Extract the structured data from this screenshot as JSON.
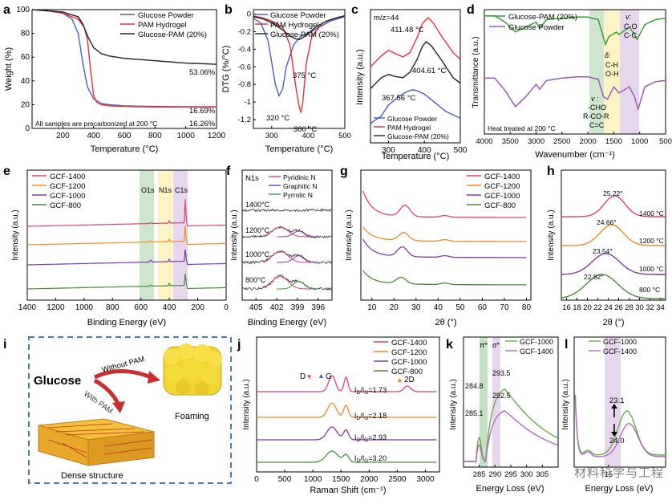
{
  "watermark": "材料科学与工程",
  "colors": {
    "blue": "#4a5fb8",
    "red": "#e8303a",
    "black": "#222222",
    "green": "#3a9d3a",
    "purple": "#9a5bb5",
    "pink": "#e0407c",
    "orange": "#f08a24",
    "violet": "#7a3ba8",
    "green2": "#4a8a3a"
  },
  "chart_data": [
    {
      "panel": "a",
      "type": "line",
      "xlabel": "Temperature (°C)",
      "ylabel": "Weight (%)",
      "xlim": [
        0,
        1200
      ],
      "ylim": [
        0,
        100
      ],
      "xticks": [
        200,
        400,
        600,
        800,
        1000,
        1200
      ],
      "yticks": [
        0,
        20,
        40,
        60,
        80,
        100
      ],
      "series": [
        {
          "name": "Glucose Powder",
          "x": [
            0,
            100,
            200,
            260,
            300,
            330,
            360,
            400,
            450,
            500,
            600,
            800,
            1000,
            1200
          ],
          "y": [
            100,
            99,
            97,
            92,
            80,
            55,
            35,
            25,
            21,
            20,
            19,
            18.5,
            18.3,
            18.2
          ]
        },
        {
          "name": "PAM Hydrogel",
          "x": [
            0,
            100,
            200,
            300,
            340,
            360,
            380,
            400,
            420,
            450,
            500,
            600,
            800,
            1000,
            1200
          ],
          "y": [
            100,
            99,
            97,
            92,
            85,
            75,
            50,
            28,
            22,
            20,
            19,
            18.5,
            18,
            18,
            18
          ]
        },
        {
          "name": "Glucose-PAM (20%)",
          "x": [
            0,
            100,
            200,
            300,
            330,
            360,
            400,
            450,
            500,
            600,
            800,
            1000,
            1200
          ],
          "y": [
            100,
            99,
            98,
            94,
            88,
            78,
            68,
            63,
            61,
            59,
            57,
            55,
            54
          ]
        }
      ],
      "annotations": [
        "53.06%",
        "16.69%",
        "16.26%",
        "All samples are precarbonized at 200 °C"
      ]
    },
    {
      "panel": "b",
      "type": "line",
      "xlabel": "Temperature (°C)",
      "ylabel": "DTG (%/°C)",
      "xlim": [
        250,
        500
      ],
      "ylim": [
        -1.3,
        0.05
      ],
      "xticks": [
        300,
        400,
        500
      ],
      "yticks": [
        0,
        -0.2,
        -0.4,
        -0.6,
        -0.8,
        -1.0,
        -1.2
      ],
      "series": [
        {
          "name": "Glucose Powder",
          "x": [
            250,
            270,
            290,
            300,
            310,
            320,
            330,
            340,
            360,
            380,
            400,
            430,
            460,
            500
          ],
          "y": [
            -0.05,
            -0.1,
            -0.3,
            -0.55,
            -0.8,
            -0.93,
            -0.85,
            -0.6,
            -0.35,
            -0.25,
            -0.22,
            -0.15,
            -0.08,
            -0.03
          ]
        },
        {
          "name": "PAM Hydrogel",
          "x": [
            250,
            280,
            300,
            330,
            350,
            365,
            375,
            380,
            385,
            395,
            410,
            440,
            470,
            500
          ],
          "y": [
            -0.02,
            -0.05,
            -0.08,
            -0.15,
            -0.35,
            -0.8,
            -1.05,
            -1.12,
            -1.0,
            -0.55,
            -0.25,
            -0.1,
            -0.05,
            -0.02
          ]
        },
        {
          "name": "Glucose-PAM (20%)",
          "x": [
            250,
            280,
            300,
            330,
            350,
            365,
            375,
            385,
            400,
            420,
            450,
            480,
            500
          ],
          "y": [
            -0.03,
            -0.06,
            -0.1,
            -0.18,
            -0.25,
            -0.28,
            -0.29,
            -0.27,
            -0.22,
            -0.15,
            -0.08,
            -0.04,
            -0.02
          ]
        }
      ],
      "annotations": [
        "375 °C",
        "320 °C",
        "380 °C"
      ]
    },
    {
      "panel": "c",
      "type": "line",
      "xlabel": "Temperature (°C)",
      "ylabel": "Intensity (a.u.)",
      "xlim": [
        250,
        500
      ],
      "xticks": [
        300,
        400,
        500
      ],
      "title": "m/z=44",
      "series": [
        {
          "name": "Glucose Powder",
          "x": [
            250,
            280,
            300,
            330,
            350,
            367,
            380,
            400,
            430,
            460,
            500
          ],
          "y": [
            0.03,
            0.1,
            0.2,
            0.28,
            0.32,
            0.34,
            0.33,
            0.3,
            0.22,
            0.14,
            0.08
          ]
        },
        {
          "name": "PAM Hydrogel",
          "x": [
            250,
            280,
            300,
            320,
            340,
            360,
            380,
            395,
            411,
            425,
            450,
            480,
            500
          ],
          "y": [
            0.55,
            0.65,
            0.7,
            0.67,
            0.64,
            0.68,
            0.82,
            0.95,
            1.0,
            0.95,
            0.82,
            0.68,
            0.62
          ]
        },
        {
          "name": "Glucose-PAM (20%)",
          "x": [
            250,
            280,
            300,
            320,
            340,
            360,
            380,
            395,
            405,
            420,
            450,
            480,
            500
          ],
          "y": [
            0.35,
            0.45,
            0.48,
            0.46,
            0.45,
            0.5,
            0.62,
            0.74,
            0.78,
            0.74,
            0.6,
            0.45,
            0.4
          ]
        }
      ],
      "annotations": [
        "411.48 °C",
        "404.61 °C",
        "367.56 °C"
      ]
    },
    {
      "panel": "d",
      "type": "line",
      "xlabel": "Wavenumber (cm⁻¹)",
      "ylabel": "Transmittance (a.u.)",
      "xlim": [
        4000,
        500
      ],
      "xticks": [
        4000,
        3500,
        3000,
        2500,
        2000,
        1500,
        1000,
        500
      ],
      "series": [
        {
          "name": "Glucose-PAM (20%)",
          "x": [
            4000,
            3800,
            3600,
            3400,
            3200,
            3000,
            2930,
            2800,
            2500,
            2200,
            2000,
            1800,
            1660,
            1600,
            1450,
            1400,
            1200,
            1100,
            1050,
            900,
            700,
            500
          ],
          "y": [
            0.95,
            0.95,
            0.9,
            0.82,
            0.86,
            0.9,
            0.85,
            0.92,
            0.93,
            0.94,
            0.94,
            0.92,
            0.72,
            0.78,
            0.82,
            0.8,
            0.86,
            0.8,
            0.76,
            0.88,
            0.92,
            0.93
          ]
        },
        {
          "name": "Glucose Powder",
          "x": [
            4000,
            3800,
            3600,
            3400,
            3200,
            3000,
            2930,
            2800,
            2500,
            2200,
            2000,
            1800,
            1700,
            1620,
            1500,
            1400,
            1200,
            1100,
            1030,
            900,
            700,
            500
          ],
          "y": [
            0.45,
            0.45,
            0.35,
            0.22,
            0.3,
            0.4,
            0.36,
            0.43,
            0.45,
            0.46,
            0.46,
            0.44,
            0.3,
            0.28,
            0.38,
            0.33,
            0.38,
            0.3,
            0.2,
            0.38,
            0.42,
            0.43
          ]
        }
      ],
      "annotations": [
        "v: C-O C-C",
        "δ: C-H O-H",
        "v: -CHO R-CO-R C=C",
        "Heat treated at 200 °C"
      ]
    },
    {
      "panel": "e",
      "type": "line",
      "xlabel": "Binding Energy (eV)",
      "ylabel": "Intensity (a.u.)",
      "xlim": [
        1400,
        0
      ],
      "xticks": [
        1400,
        1200,
        1000,
        800,
        600,
        400,
        200,
        0
      ],
      "series": [
        {
          "name": "GCF-1400"
        },
        {
          "name": "GCF-1200"
        },
        {
          "name": "GCF-1000"
        },
        {
          "name": "GCF-800"
        }
      ],
      "annotations": [
        "O1s",
        "N1s",
        "C1s"
      ]
    },
    {
      "panel": "f",
      "type": "line",
      "xlabel": "Binding Energy (eV)",
      "ylabel": "Intensity (a.u.)",
      "xlim": [
        407,
        394
      ],
      "xticks": [
        405,
        402,
        399,
        396
      ],
      "title": "N1s",
      "series": [
        {
          "name": "Pyridinic N"
        },
        {
          "name": "Graphitic N"
        },
        {
          "name": "Pyrrolic N"
        }
      ],
      "annotations": [
        "1400°C",
        "1200°C",
        "1000°C",
        "800°C"
      ]
    },
    {
      "panel": "g",
      "type": "line",
      "xlabel": "2θ (°)",
      "ylabel": "Intensity (a.u.)",
      "xlim": [
        5,
        82
      ],
      "xticks": [
        10,
        20,
        30,
        40,
        50,
        60,
        70,
        80
      ],
      "series": [
        {
          "name": "GCF-1400"
        },
        {
          "name": "GCF-1200"
        },
        {
          "name": "GCF-1000"
        },
        {
          "name": "GCF-800"
        }
      ]
    },
    {
      "panel": "h",
      "type": "line",
      "xlabel": "2θ (°)",
      "ylabel": "Intensity (a.u.)",
      "xlim": [
        15,
        35
      ],
      "xticks": [
        16,
        18,
        20,
        22,
        24,
        26,
        28,
        30,
        32,
        34
      ],
      "series": [
        {
          "name": "1400 °C",
          "peak": 25.22
        },
        {
          "name": "1200 °C",
          "peak": 24.66
        },
        {
          "name": "1000 °C",
          "peak": 23.54
        },
        {
          "name": "800 °C",
          "peak": 22.82
        }
      ],
      "annotations": [
        "25.22°",
        "24.66°",
        "23.54°",
        "22.82°"
      ]
    },
    {
      "panel": "j",
      "type": "line",
      "xlabel": "Raman Shift (cm⁻¹)",
      "ylabel": "Intensity (a.u.)",
      "xlim": [
        0,
        3250
      ],
      "xticks": [
        0,
        500,
        1000,
        1500,
        2000,
        2500,
        3000
      ],
      "series": [
        {
          "name": "GCF-1400",
          "ratio": "1.73"
        },
        {
          "name": "GCF-1200",
          "ratio": "2.18"
        },
        {
          "name": "GCF-1000",
          "ratio": "2.93"
        },
        {
          "name": "GCF-800",
          "ratio": "3.20"
        }
      ],
      "annotations": [
        "D",
        "G",
        "2D",
        "I_D/I_G=1.73",
        "I_D/I_G=2.18",
        "I_D/I_G=2.93",
        "I_D/I_G=3.20"
      ]
    },
    {
      "panel": "k",
      "type": "line",
      "xlabel": "Energy Loss (eV)",
      "ylabel": "Intensity (a.u.)",
      "xlim": [
        280,
        310
      ],
      "xticks": [
        285,
        290,
        295,
        300,
        305
      ],
      "series": [
        {
          "name": "GCF-1000"
        },
        {
          "name": "GCF-1400"
        }
      ],
      "annotations": [
        "π*",
        "σ*",
        "284.8",
        "285.1",
        "293.5",
        "292.5"
      ]
    },
    {
      "panel": "l",
      "type": "line",
      "xlabel": "Energy Loss (eV)",
      "ylabel": "Intensity (a.u.)",
      "xlim": [
        0,
        40
      ],
      "xticks": [
        15
      ],
      "series": [
        {
          "name": "GCF-1000"
        },
        {
          "name": "GCF-1400"
        }
      ],
      "annotations": [
        "23.1",
        "24.0"
      ]
    }
  ],
  "panel_i": {
    "glucose": "Glucose",
    "without_pam": "Without PAM",
    "with_pam": "With PAM",
    "foaming": "Foaming",
    "dense": "Dense structure"
  },
  "labels": {
    "a": "a",
    "b": "b",
    "c": "c",
    "d": "d",
    "e": "e",
    "f": "f",
    "g": "g",
    "h": "h",
    "i": "i",
    "j": "j",
    "k": "k",
    "l": "l",
    "a_xl": "Temperature (°C)",
    "a_yl": "Weight (%)",
    "a_note": "All samples are precarbonized at 200 °C",
    "a_v1": "53.06%",
    "a_v2": "16.69%",
    "a_v3": "16.26%",
    "a_leg1": "Glucose Powder",
    "a_leg2": "PAM Hydrogel",
    "a_leg3": "Glucose-PAM (20%)",
    "b_xl": "Temperature (°C)",
    "b_yl": "DTG (%/°C)",
    "b_p1": "375 °C",
    "b_p2": "320 °C",
    "b_p3": "380 °C",
    "c_xl": "Temperature (°C)",
    "c_yl": "Intensity (a.u.)",
    "c_title": "m/z=44",
    "c_p1": "411.48 °C",
    "c_p2": "404.61 °C",
    "c_p3": "367.56 °C",
    "d_xl": "Wavenumber (cm⁻¹)",
    "d_yl": "Transmittance (a.u.)",
    "d_leg1": "Glucose-PAM (20%)",
    "d_leg2": "Glucose Powder",
    "d_a1": "v:",
    "d_a2": "C-O",
    "d_a3": "C-C",
    "d_b1": "δ:",
    "d_b2": "C-H",
    "d_b3": "O-H",
    "d_c1": "v :",
    "d_c2": "-CHO",
    "d_c3": "R-CO-R",
    "d_c4": "C=C",
    "d_note": "Heat treated at 200 °C",
    "e_xl": "Binding Energy (eV)",
    "e_yl": "Intensity (a.u.)",
    "e_o": "O1s",
    "e_n": "N1s",
    "e_c": "C1s",
    "gcf1400": "GCF-1400",
    "gcf1200": "GCF-1200",
    "gcf1000": "GCF-1000",
    "gcf800": "GCF-800",
    "f_xl": "Binding Energy (eV)",
    "f_yl": "Intensity (a.u.)",
    "f_n1s": "N1s",
    "f_pyri": "Pyridinic N",
    "f_grap": "Graphitic N",
    "f_pyrr": "Pyrrolic N",
    "f_t1": "1400°C",
    "f_t2": "1200°C",
    "f_t3": "1000°C",
    "f_t4": "800°C",
    "g_xl": "2θ (°)",
    "g_yl": "Intensity (a.u.)",
    "h_xl": "2θ (°)",
    "h_yl": "Intensity (a.u.)",
    "h_p1": "25.22°",
    "h_p2": "24.66°",
    "h_p3": "23.54°",
    "h_p4": "22.82°",
    "h_t1": "1400 °C",
    "h_t2": "1200 °C",
    "h_t3": "1000 °C",
    "h_t4": "800 °C",
    "j_xl": "Raman Shift (cm⁻¹)",
    "j_yl": "Intensity (a.u.)",
    "j_D": "D",
    "j_G": "G",
    "j_2D": "2D",
    "j_r1": "I",
    "j_r1b": "D",
    "j_r1c": "/I",
    "j_r1d": "G",
    "j_r1e": "=1.73",
    "j_r2": "=2.18",
    "j_r3": "=2.93",
    "j_r4": "=3.20",
    "k_xl": "Energy Loss (eV)",
    "k_yl": "Intensity (a.u.)",
    "k_pi": "π*",
    "k_sig": "σ*",
    "k_1": "284.8",
    "k_2": "285.1",
    "k_3": "293.5",
    "k_4": "292.5",
    "l_xl": "Energy Loss (eV)",
    "l_yl": "Intensity (a.u.)",
    "l_1": "23.1",
    "l_2": "24.0"
  }
}
